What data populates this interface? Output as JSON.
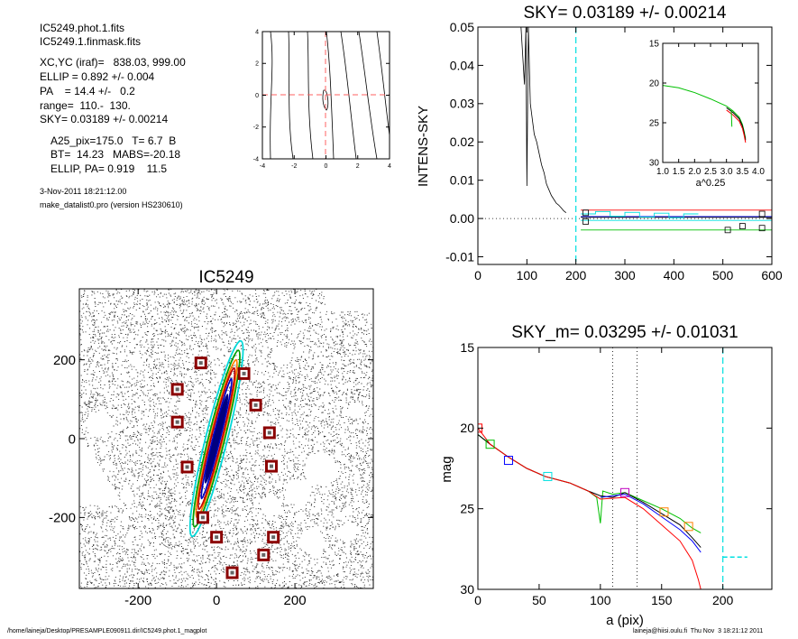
{
  "header": {
    "files": [
      "IC5249.phot.1.fits",
      "IC5249.1.finmask.fits"
    ],
    "params": [
      "XC,YC (iraf)=   838.03, 999.00",
      "ELLIP = 0.892 +/- 0.004",
      "PA    = 14.4 +/-   0.2",
      "range=  110.-  130.",
      "SKY= 0.03189 +/- 0.00214"
    ],
    "galaxy_params": [
      "A25_pix=175.0   T= 6.7  B",
      "BT=  14.23   MABS=-20.18",
      "ELLIP, PA= 0.919    11.5"
    ],
    "date": "3-Nov-2011 18:21:12.00",
    "program": "make_datalist0.pro (version HS230610)"
  },
  "footer": {
    "path": "/home/laineja/Desktop/PRESAMPLE090911.dir/IC5249.phot.1_magplot",
    "user": "laineja@hiisi.oulu.fi  Thu Nov  3 18:21:12 2011"
  },
  "colors": {
    "red": "#ff0000",
    "green": "#00c000",
    "blue": "#0000ff",
    "cyan": "#00e0e0",
    "orange": "#ff8000",
    "magenta": "#c000c0",
    "dark_red": "#8b0000"
  },
  "chart_data": [
    {
      "id": "center_contours",
      "type": "contour",
      "xlim": [
        -4,
        4
      ],
      "ylim": [
        -4,
        4
      ],
      "xticks": [
        "-4",
        "-2",
        "0",
        "2",
        "4"
      ],
      "yticks": [
        "-4",
        "-2",
        "0",
        "2",
        "4"
      ]
    },
    {
      "id": "sky_profile",
      "type": "line",
      "title": "SKY= 0.03189 +/- 0.00214",
      "ylabel": "INTENS-SKY",
      "xlim": [
        0,
        600
      ],
      "ylim": [
        -0.012,
        0.05
      ],
      "xticks": [
        "0",
        "100",
        "200",
        "300",
        "400",
        "500",
        "600"
      ],
      "yticks": [
        "-0.01",
        "0.00",
        "0.01",
        "0.02",
        "0.03",
        "0.04",
        "0.05"
      ],
      "sky_radius": 200,
      "profile": [
        [
          88,
          0.05
        ],
        [
          95,
          0.035
        ],
        [
          98,
          0.05
        ],
        [
          100,
          0.0085
        ],
        [
          103,
          0.05
        ],
        [
          107,
          0.03
        ],
        [
          111,
          0.026
        ],
        [
          115,
          0.022
        ],
        [
          120,
          0.02
        ],
        [
          125,
          0.017
        ],
        [
          130,
          0.014
        ],
        [
          135,
          0.012
        ],
        [
          140,
          0.009
        ],
        [
          145,
          0.0075
        ],
        [
          150,
          0.006
        ],
        [
          155,
          0.005
        ],
        [
          160,
          0.004
        ],
        [
          165,
          0.0035
        ],
        [
          170,
          0.0028
        ],
        [
          175,
          0.002
        ],
        [
          180,
          0.0015
        ]
      ],
      "levels": [
        {
          "color": "red",
          "y": 0.0022
        },
        {
          "color": "blue",
          "y": 0.0005
        },
        {
          "color": "black",
          "y": 0.0003
        },
        {
          "color": "cyan",
          "y": -0.0005
        },
        {
          "color": "green",
          "y": -0.003
        }
      ],
      "markers": [
        [
          220,
          0.0015
        ],
        [
          220,
          -0.0008
        ],
        [
          510,
          -0.003
        ],
        [
          540,
          -0.002
        ],
        [
          580,
          0.0012
        ],
        [
          580,
          -0.0025
        ]
      ],
      "inset": {
        "xlabel": "a^0.25",
        "xlim": [
          1.0,
          4.0
        ],
        "ylim": [
          30,
          15
        ],
        "xticks": [
          "1.0",
          "1.5",
          "2.0",
          "2.5",
          "3.0",
          "3.5",
          "4.0"
        ],
        "yticks": [
          "15",
          "20",
          "25",
          "30"
        ],
        "profile": [
          [
            1.0,
            20.3
          ],
          [
            1.5,
            20.6
          ],
          [
            2.0,
            21.2
          ],
          [
            2.5,
            22.0
          ],
          [
            3.0,
            22.9
          ],
          [
            3.2,
            23.5
          ],
          [
            3.4,
            24.3
          ],
          [
            3.5,
            25.2
          ],
          [
            3.55,
            26.0
          ],
          [
            3.6,
            27.0
          ]
        ]
      }
    },
    {
      "id": "galaxy_image",
      "type": "image",
      "title": "IC5249",
      "xlim": [
        -350,
        400
      ],
      "ylim": [
        -380,
        380
      ],
      "xticks": [
        "-200",
        "0",
        "200"
      ],
      "yticks": [
        "-200",
        "0",
        "200"
      ],
      "star_boxes": [
        [
          -40,
          192
        ],
        [
          70,
          165
        ],
        [
          -100,
          125
        ],
        [
          100,
          85
        ],
        [
          -100,
          42
        ],
        [
          135,
          15
        ],
        [
          -75,
          -72
        ],
        [
          140,
          -70
        ],
        [
          -35,
          -200
        ],
        [
          0,
          -250
        ],
        [
          145,
          -250
        ],
        [
          120,
          -295
        ],
        [
          40,
          -340
        ]
      ]
    },
    {
      "id": "magnitude_profile",
      "type": "line",
      "title": "SKY_m=  0.03295 +/- 0.01031",
      "xlabel": "a (pix)",
      "ylabel": "mag",
      "xlim": [
        0,
        240
      ],
      "ylim": [
        30,
        15
      ],
      "xticks": [
        "0",
        "50",
        "100",
        "150",
        "200"
      ],
      "yticks": [
        "15",
        "20",
        "25",
        "30"
      ],
      "range_lines": [
        110,
        130
      ],
      "sky_radius": 200,
      "sky_mark": {
        "x": [
          200,
          220
        ],
        "y": 28
      },
      "series": [
        {
          "color": "green",
          "points": [
            [
              0,
              20.4
            ],
            [
              10,
              21.0
            ],
            [
              25,
              21.8
            ],
            [
              40,
              22.5
            ],
            [
              55,
              23.0
            ],
            [
              75,
              23.4
            ],
            [
              90,
              23.9
            ],
            [
              97,
              24.3
            ],
            [
              100,
              25.9
            ],
            [
              102,
              23.9
            ],
            [
              110,
              24.1
            ],
            [
              120,
              24.0
            ],
            [
              135,
              24.5
            ],
            [
              150,
              25.0
            ],
            [
              165,
              25.6
            ],
            [
              175,
              26.2
            ],
            [
              182,
              26.5
            ]
          ]
        },
        {
          "color": "black",
          "points": [
            [
              0,
              20.4
            ],
            [
              10,
              21.0
            ],
            [
              25,
              21.8
            ],
            [
              40,
              22.5
            ],
            [
              55,
              23.0
            ],
            [
              75,
              23.4
            ],
            [
              90,
              23.9
            ],
            [
              100,
              24.2
            ],
            [
              110,
              24.3
            ],
            [
              120,
              24.0
            ],
            [
              135,
              24.6
            ],
            [
              150,
              25.3
            ],
            [
              165,
              26.0
            ],
            [
              175,
              26.8
            ],
            [
              182,
              27.4
            ]
          ]
        },
        {
          "color": "blue",
          "points": [
            [
              100,
              24.3
            ],
            [
              120,
              24.1
            ],
            [
              135,
              24.7
            ],
            [
              150,
              25.5
            ],
            [
              165,
              26.3
            ],
            [
              175,
              27.0
            ],
            [
              182,
              27.7
            ]
          ]
        },
        {
          "color": "red",
          "points": [
            [
              0,
              20.0
            ],
            [
              10,
              21.0
            ],
            [
              25,
              21.8
            ],
            [
              40,
              22.5
            ],
            [
              55,
              23.0
            ],
            [
              75,
              23.4
            ],
            [
              90,
              23.9
            ],
            [
              100,
              24.4
            ],
            [
              120,
              24.3
            ],
            [
              135,
              25.0
            ],
            [
              150,
              26.0
            ],
            [
              165,
              27.0
            ],
            [
              175,
              28.2
            ],
            [
              180,
              29.4
            ],
            [
              182,
              30
            ]
          ]
        }
      ],
      "markers": [
        {
          "color": "red",
          "x": 0,
          "y": 20.0
        },
        {
          "color": "green",
          "x": 10,
          "y": 21.0
        },
        {
          "color": "blue",
          "x": 25,
          "y": 22.0
        },
        {
          "color": "cyan",
          "x": 57,
          "y": 23.0
        },
        {
          "color": "magenta",
          "x": 120,
          "y": 24.0
        },
        {
          "color": "orange",
          "x": 152,
          "y": 25.2
        },
        {
          "color": "orange",
          "x": 172,
          "y": 26.1
        }
      ]
    }
  ]
}
